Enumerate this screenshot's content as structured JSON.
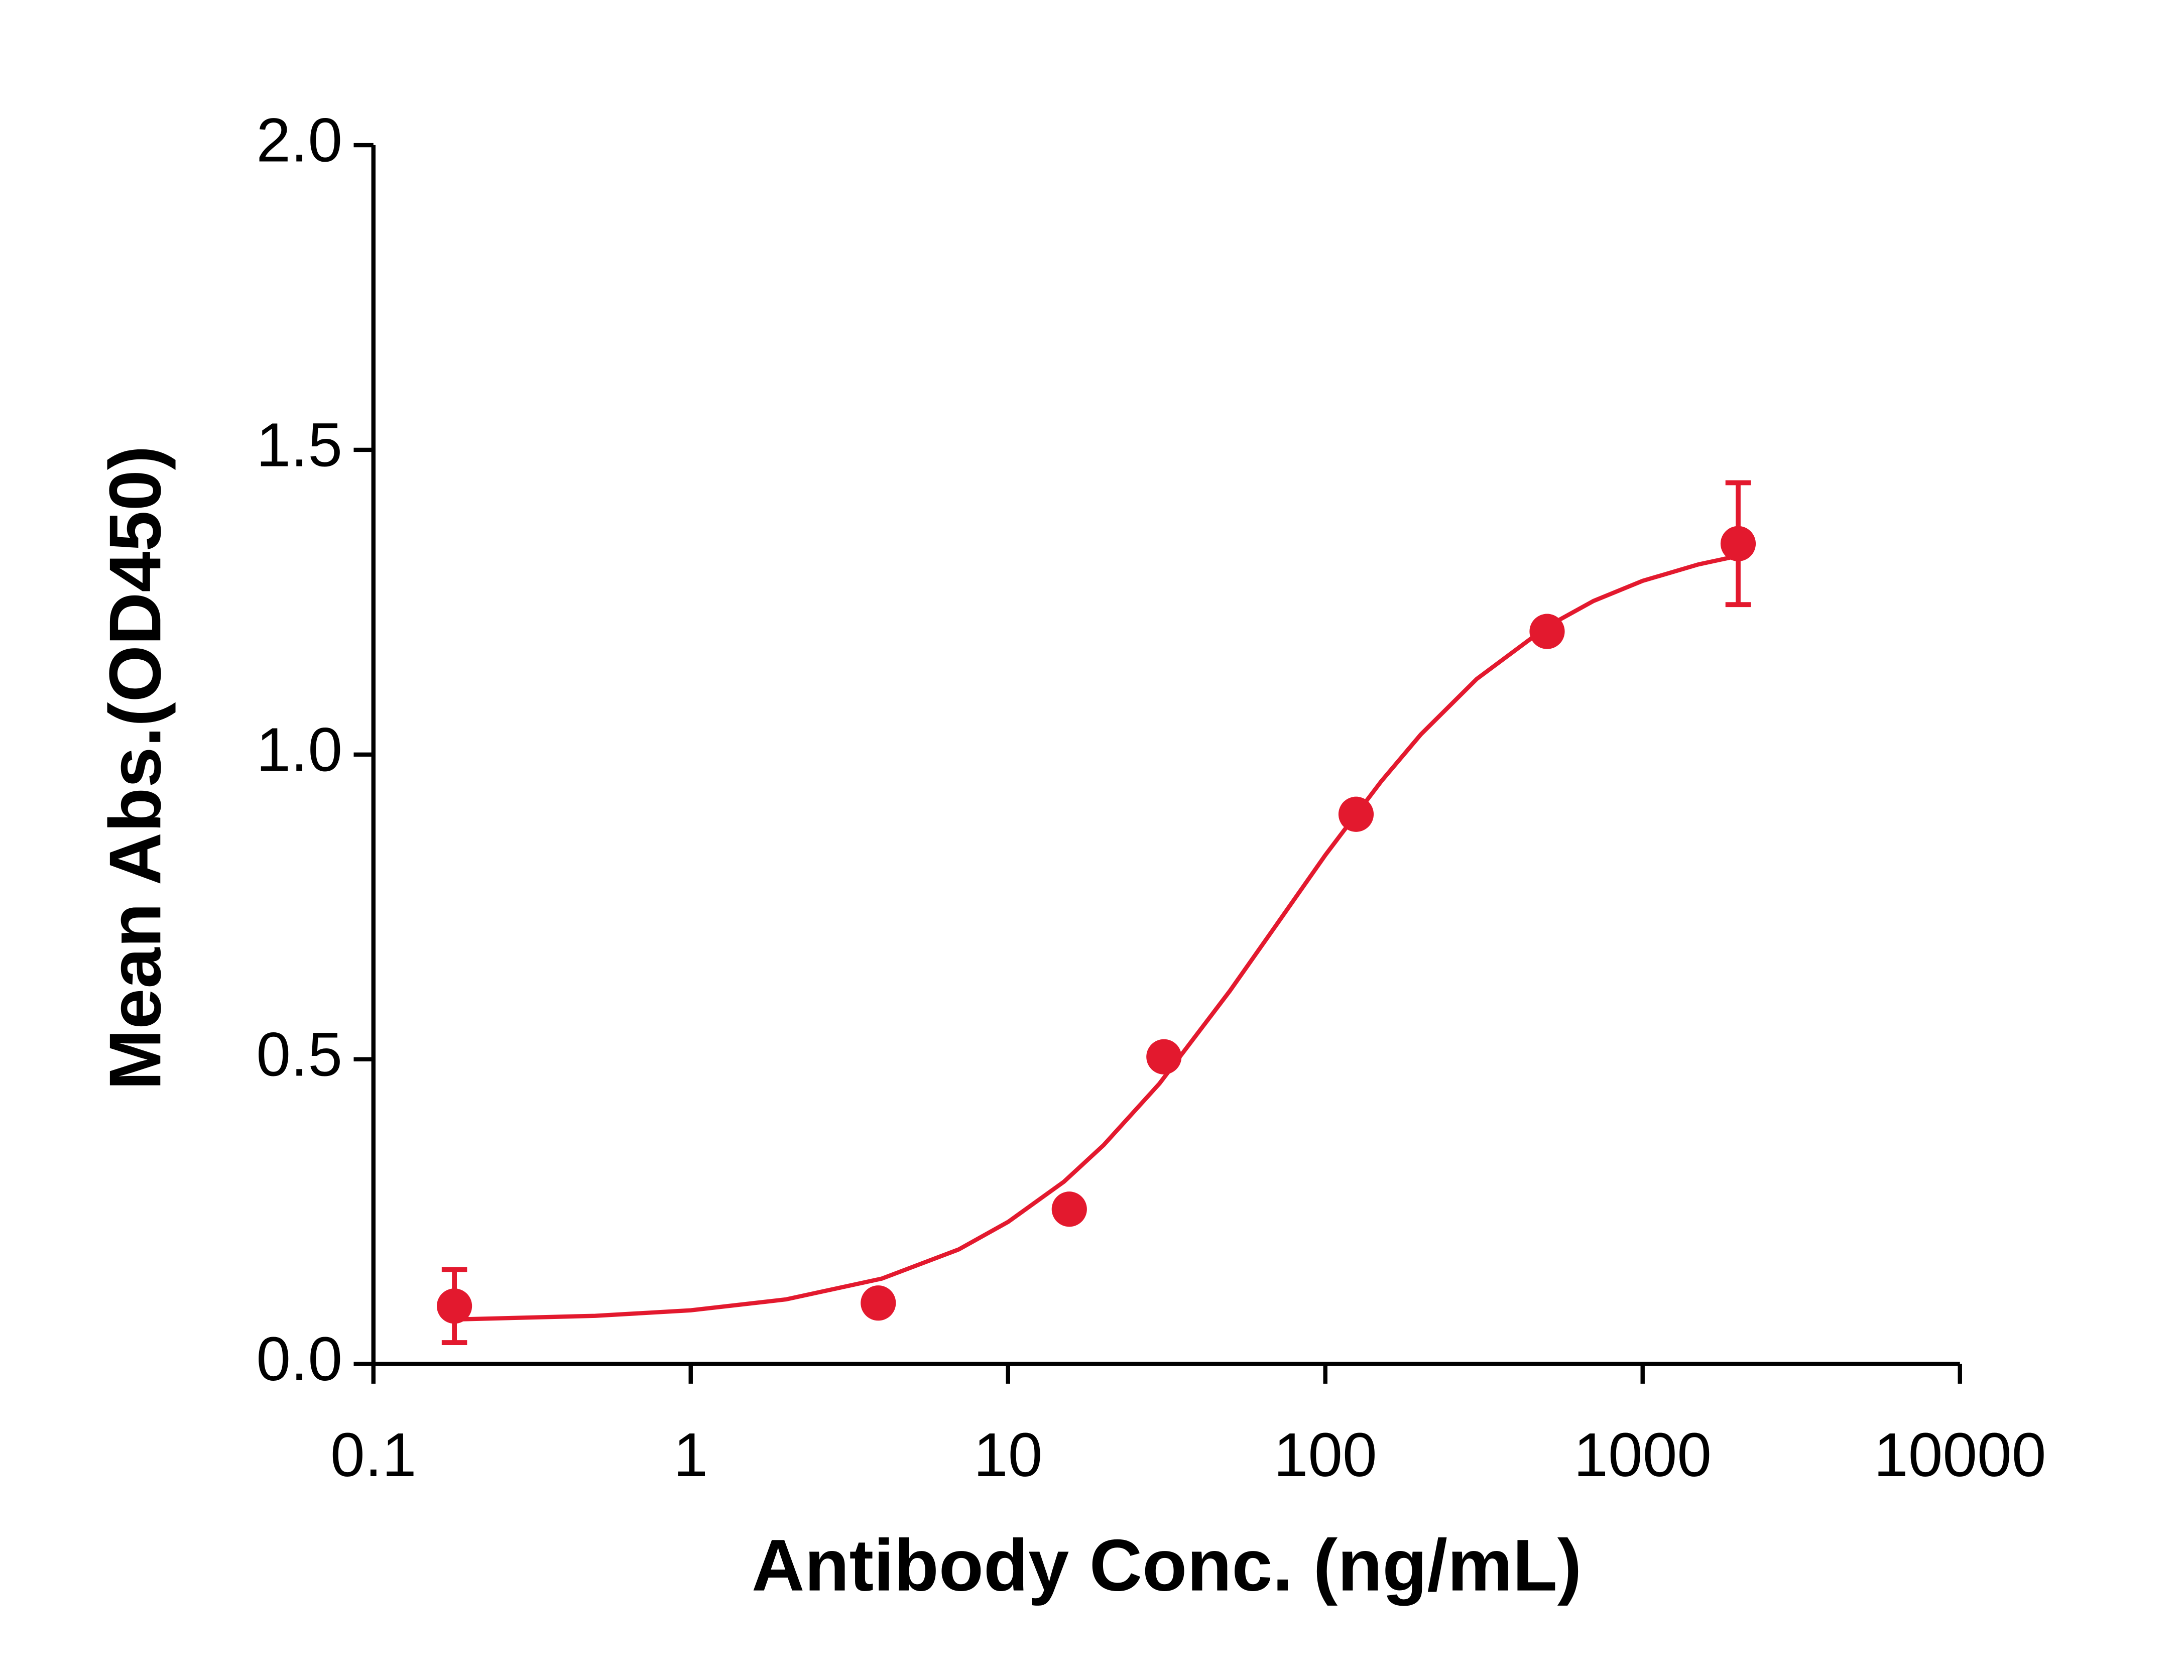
{
  "chart_data": {
    "type": "scatter",
    "xlabel": "Antibody Conc. (ng/mL)",
    "ylabel": "Mean Abs.(OD450)",
    "xscale": "log",
    "xlim": [
      0.1,
      10000
    ],
    "xticks": [
      0.1,
      1,
      10,
      100,
      1000,
      10000
    ],
    "ylim": [
      0,
      2
    ],
    "yticks": [
      {
        "value": 0,
        "label": "0.0"
      },
      0.5,
      {
        "value": 1,
        "label": "1.0"
      },
      1.5,
      {
        "value": 2,
        "label": "2.0"
      }
    ],
    "color": "#e3192e",
    "points": {
      "x": [
        0.18,
        3.9,
        15.6,
        31,
        125,
        500,
        2000
      ],
      "values": [
        0.095,
        0.1,
        0.254,
        0.504,
        0.902,
        1.202,
        1.346
      ],
      "errors": [
        0.06,
        null,
        null,
        null,
        null,
        null,
        0.1
      ]
    },
    "fit": {
      "x": [
        0.18,
        0.3,
        0.5,
        1,
        2,
        4,
        7,
        10,
        15,
        20,
        30,
        50,
        70,
        100,
        150,
        200,
        300,
        500,
        700,
        1000,
        1500,
        2000
      ],
      "values": [
        0.073,
        0.076,
        0.079,
        0.088,
        0.106,
        0.14,
        0.188,
        0.233,
        0.299,
        0.359,
        0.46,
        0.612,
        0.72,
        0.835,
        0.956,
        1.033,
        1.124,
        1.21,
        1.252,
        1.285,
        1.312,
        1.326
      ]
    }
  }
}
